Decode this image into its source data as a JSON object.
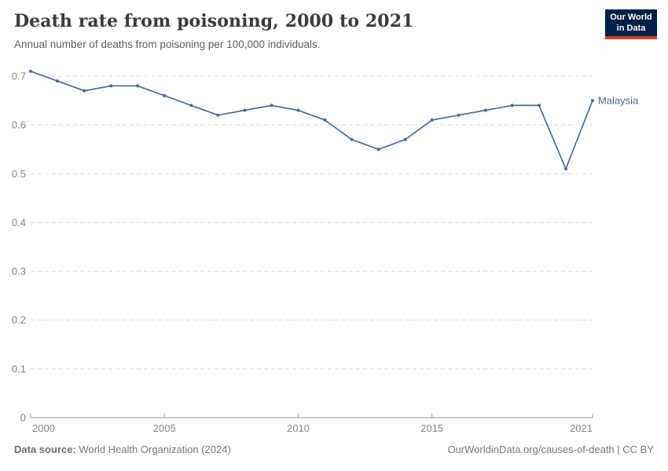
{
  "header": {
    "title": "Death rate from poisoning, 2000 to 2021",
    "subtitle": "Annual number of deaths from poisoning per 100,000 individuals."
  },
  "logo": {
    "line1": "Our World",
    "line2": "in Data",
    "bg_color": "#002147",
    "accent_color": "#dc3927"
  },
  "chart_data": {
    "type": "line",
    "title": "Death rate from poisoning, 2000 to 2021",
    "xlabel": "",
    "ylabel": "",
    "xlim": [
      2000,
      2021
    ],
    "ylim": [
      0,
      0.7
    ],
    "x_ticks": [
      2000,
      2005,
      2010,
      2015,
      2021
    ],
    "y_ticks": [
      0,
      0.1,
      0.2,
      0.3,
      0.4,
      0.5,
      0.6,
      0.7
    ],
    "grid": "horizontal-dashed",
    "legend_position": "end-of-line-label",
    "grid_color": "#dcdcdc",
    "axis_color": "#9a9a9a",
    "tick_label_color": "#858585",
    "series": [
      {
        "name": "Malaysia",
        "color": "#4c6a9c",
        "x": [
          2000,
          2001,
          2002,
          2003,
          2004,
          2005,
          2006,
          2007,
          2008,
          2009,
          2010,
          2011,
          2012,
          2013,
          2014,
          2015,
          2016,
          2017,
          2018,
          2019,
          2020,
          2021
        ],
        "values": [
          0.71,
          0.69,
          0.67,
          0.68,
          0.68,
          0.66,
          0.64,
          0.62,
          0.63,
          0.64,
          0.63,
          0.61,
          0.57,
          0.55,
          0.57,
          0.61,
          0.62,
          0.63,
          0.64,
          0.64,
          0.51,
          0.65
        ]
      }
    ]
  },
  "footer": {
    "source_label": "Data source:",
    "source_value": " World Health Organization (2024)",
    "credit": "OurWorldinData.org/causes-of-death | CC BY"
  }
}
